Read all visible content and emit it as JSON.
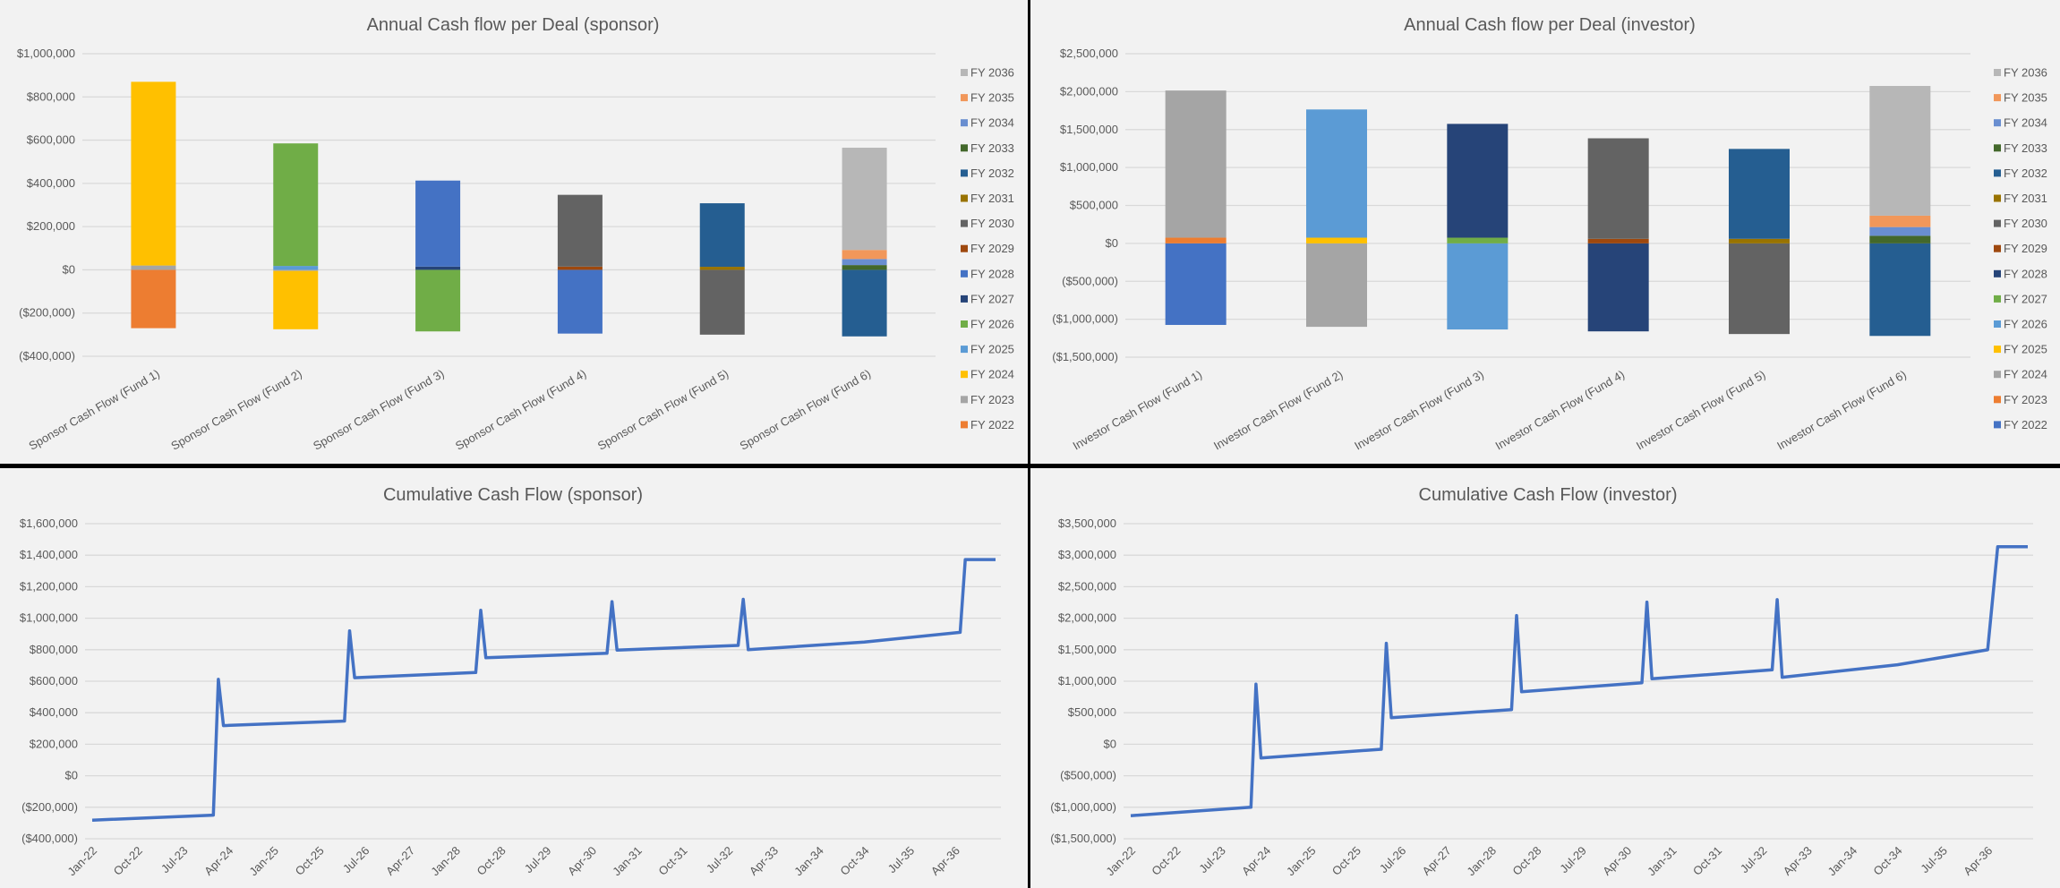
{
  "chart_data": [
    {
      "type": "bar",
      "stacked": true,
      "title": "Annual Cash flow per Deal (sponsor)",
      "categories": [
        "Sponsor Cash Flow (Fund 1)",
        "Sponsor Cash Flow (Fund 2)",
        "Sponsor Cash Flow (Fund 3)",
        "Sponsor Cash Flow (Fund 4)",
        "Sponsor Cash Flow (Fund 5)",
        "Sponsor Cash Flow (Fund 6)"
      ],
      "ylim": [
        -400000,
        1000000
      ],
      "yticks": [
        -400000,
        -200000,
        0,
        200000,
        400000,
        600000,
        800000,
        1000000
      ],
      "ytick_labels": [
        "($400,000)",
        "($200,000)",
        "$0",
        "$200,000",
        "$400,000",
        "$600,000",
        "$800,000",
        "$1,000,000"
      ],
      "grid": true,
      "legend": "right",
      "series": [
        {
          "name": "FY 2022",
          "color": "#ED7D31",
          "values": [
            -270000,
            0,
            0,
            0,
            0,
            0
          ]
        },
        {
          "name": "FY 2023",
          "color": "#A5A5A5",
          "values": [
            20000,
            -5000,
            0,
            0,
            0,
            0
          ]
        },
        {
          "name": "FY 2024",
          "color": "#FFC000",
          "values": [
            850000,
            -270000,
            0,
            0,
            0,
            0
          ]
        },
        {
          "name": "FY 2025",
          "color": "#5B9BD5",
          "values": [
            0,
            18000,
            0,
            0,
            0,
            0
          ]
        },
        {
          "name": "FY 2026",
          "color": "#70AD47",
          "values": [
            0,
            567000,
            -285000,
            0,
            0,
            0
          ]
        },
        {
          "name": "FY 2027",
          "color": "#264478",
          "values": [
            0,
            0,
            15000,
            0,
            0,
            0
          ]
        },
        {
          "name": "FY 2028",
          "color": "#4472C4",
          "values": [
            0,
            0,
            398000,
            -295000,
            0,
            0
          ]
        },
        {
          "name": "FY 2029",
          "color": "#9E480E",
          "values": [
            0,
            0,
            0,
            15000,
            0,
            0
          ]
        },
        {
          "name": "FY 2030",
          "color": "#636363",
          "values": [
            0,
            0,
            0,
            332000,
            -300000,
            0
          ]
        },
        {
          "name": "FY 2031",
          "color": "#997300",
          "values": [
            0,
            0,
            0,
            0,
            14000,
            0
          ]
        },
        {
          "name": "FY 2032",
          "color": "#255E91",
          "values": [
            0,
            0,
            0,
            0,
            294000,
            -308000
          ]
        },
        {
          "name": "FY 2033",
          "color": "#43682B",
          "values": [
            0,
            0,
            0,
            0,
            0,
            22000
          ]
        },
        {
          "name": "FY 2034",
          "color": "#698ED0",
          "values": [
            0,
            0,
            0,
            0,
            0,
            28000
          ]
        },
        {
          "name": "FY 2035",
          "color": "#F1975A",
          "values": [
            0,
            0,
            0,
            0,
            0,
            42000
          ]
        },
        {
          "name": "FY 2036",
          "color": "#B7B7B7",
          "values": [
            0,
            0,
            0,
            0,
            0,
            473000
          ]
        }
      ]
    },
    {
      "type": "bar",
      "stacked": true,
      "title": "Annual Cash flow per Deal (investor)",
      "categories": [
        "Investor Cash Flow (Fund 1)",
        "Investor Cash Flow (Fund 2)",
        "Investor Cash Flow (Fund 3)",
        "Investor Cash Flow (Fund 4)",
        "Investor Cash Flow (Fund 5)",
        "Investor Cash Flow (Fund 6)"
      ],
      "ylim": [
        -1500000,
        2500000
      ],
      "yticks": [
        -1500000,
        -1000000,
        -500000,
        0,
        500000,
        1000000,
        1500000,
        2000000,
        2500000
      ],
      "ytick_labels": [
        "($1,500,000)",
        "($1,000,000)",
        "($500,000)",
        "$0",
        "$500,000",
        "$1,000,000",
        "$1,500,000",
        "$2,000,000",
        "$2,500,000"
      ],
      "grid": true,
      "legend": "right",
      "series": [
        {
          "name": "FY 2022",
          "color": "#4472C4",
          "values": [
            -1075000,
            0,
            0,
            0,
            0,
            0
          ]
        },
        {
          "name": "FY 2023",
          "color": "#ED7D31",
          "values": [
            75000,
            0,
            0,
            0,
            0,
            0
          ]
        },
        {
          "name": "FY 2024",
          "color": "#A5A5A5",
          "values": [
            1940000,
            -1100000,
            0,
            0,
            0,
            0
          ]
        },
        {
          "name": "FY 2025",
          "color": "#FFC000",
          "values": [
            0,
            75000,
            0,
            0,
            0,
            0
          ]
        },
        {
          "name": "FY 2026",
          "color": "#5B9BD5",
          "values": [
            0,
            1690000,
            -1135000,
            0,
            0,
            0
          ]
        },
        {
          "name": "FY 2027",
          "color": "#70AD47",
          "values": [
            0,
            0,
            75000,
            0,
            0,
            0
          ]
        },
        {
          "name": "FY 2028",
          "color": "#264478",
          "values": [
            0,
            0,
            1500000,
            -1160000,
            0,
            0
          ]
        },
        {
          "name": "FY 2029",
          "color": "#9E480E",
          "values": [
            0,
            0,
            0,
            60000,
            0,
            0
          ]
        },
        {
          "name": "FY 2030",
          "color": "#636363",
          "values": [
            0,
            0,
            0,
            1325000,
            -1195000,
            0
          ]
        },
        {
          "name": "FY 2031",
          "color": "#997300",
          "values": [
            0,
            0,
            0,
            0,
            60000,
            0
          ]
        },
        {
          "name": "FY 2032",
          "color": "#255E91",
          "values": [
            0,
            0,
            0,
            0,
            1185000,
            -1220000
          ]
        },
        {
          "name": "FY 2033",
          "color": "#43682B",
          "values": [
            0,
            0,
            0,
            0,
            0,
            100000
          ]
        },
        {
          "name": "FY 2034",
          "color": "#698ED0",
          "values": [
            0,
            0,
            0,
            0,
            0,
            115000
          ]
        },
        {
          "name": "FY 2035",
          "color": "#F1975A",
          "values": [
            0,
            0,
            0,
            0,
            0,
            150000
          ]
        },
        {
          "name": "FY 2036",
          "color": "#B7B7B7",
          "values": [
            0,
            0,
            0,
            0,
            0,
            1710000
          ]
        }
      ]
    },
    {
      "type": "line",
      "title": "Cumulative Cash Flow (sponsor)",
      "xlim": [
        "2022-01",
        "2036-12"
      ],
      "xtick_labels": [
        "Jan-22",
        "Oct-22",
        "Jul-23",
        "Apr-24",
        "Jan-25",
        "Oct-25",
        "Jul-26",
        "Apr-27",
        "Jan-28",
        "Oct-28",
        "Jul-29",
        "Apr-30",
        "Jan-31",
        "Oct-31",
        "Jul-32",
        "Apr-33",
        "Jan-34",
        "Oct-34",
        "Jul-35",
        "Apr-36"
      ],
      "ylim": [
        -400000,
        1600000
      ],
      "yticks": [
        -400000,
        -200000,
        0,
        200000,
        400000,
        600000,
        800000,
        1000000,
        1200000,
        1400000,
        1600000
      ],
      "ytick_labels": [
        "($400,000)",
        "($200,000)",
        "$0",
        "$200,000",
        "$400,000",
        "$600,000",
        "$800,000",
        "$1,000,000",
        "$1,200,000",
        "$1,400,000",
        "$1,600,000"
      ],
      "grid": true,
      "color": "#4472C4",
      "points": [
        [
          "2022-01",
          -282000
        ],
        [
          "2024-01",
          -250000
        ],
        [
          "2024-02",
          612000
        ],
        [
          "2024-03",
          318000
        ],
        [
          "2026-03",
          347000
        ],
        [
          "2026-04",
          920000
        ],
        [
          "2026-05",
          622000
        ],
        [
          "2028-05",
          655000
        ],
        [
          "2028-06",
          1050000
        ],
        [
          "2028-07",
          749000
        ],
        [
          "2030-07",
          777000
        ],
        [
          "2030-08",
          1105000
        ],
        [
          "2030-09",
          798000
        ],
        [
          "2032-09",
          827000
        ],
        [
          "2032-10",
          1120000
        ],
        [
          "2032-11",
          800000
        ],
        [
          "2034-10",
          849000
        ],
        [
          "2036-05",
          910000
        ],
        [
          "2036-06",
          1372000
        ],
        [
          "2036-12",
          1372000
        ]
      ]
    },
    {
      "type": "line",
      "title": "Cumulative Cash Flow (investor)",
      "xlim": [
        "2022-01",
        "2036-12"
      ],
      "xtick_labels": [
        "Jan-22",
        "Oct-22",
        "Jul-23",
        "Apr-24",
        "Jan-25",
        "Oct-25",
        "Jul-26",
        "Apr-27",
        "Jan-28",
        "Oct-28",
        "Jul-29",
        "Apr-30",
        "Jan-31",
        "Oct-31",
        "Jul-32",
        "Apr-33",
        "Jan-34",
        "Oct-34",
        "Jul-35",
        "Apr-36"
      ],
      "ylim": [
        -1500000,
        3500000
      ],
      "yticks": [
        -1500000,
        -1000000,
        -500000,
        0,
        500000,
        1000000,
        1500000,
        2000000,
        2500000,
        3000000,
        3500000
      ],
      "ytick_labels": [
        "($1,500,000)",
        "($1,000,000)",
        "($500,000)",
        "$0",
        "$500,000",
        "$1,000,000",
        "$1,500,000",
        "$2,000,000",
        "$2,500,000",
        "$3,000,000",
        "$3,500,000"
      ],
      "grid": true,
      "color": "#4472C4",
      "points": [
        [
          "2022-01",
          -1133000
        ],
        [
          "2024-01",
          -1000000
        ],
        [
          "2024-02",
          953000
        ],
        [
          "2024-03",
          -218000
        ],
        [
          "2026-03",
          -80000
        ],
        [
          "2026-04",
          1602000
        ],
        [
          "2026-05",
          422000
        ],
        [
          "2028-05",
          550000
        ],
        [
          "2028-06",
          2043000
        ],
        [
          "2028-07",
          834000
        ],
        [
          "2030-07",
          976000
        ],
        [
          "2030-08",
          2256000
        ],
        [
          "2030-09",
          1038000
        ],
        [
          "2032-09",
          1180000
        ],
        [
          "2032-10",
          2294000
        ],
        [
          "2032-11",
          1062000
        ],
        [
          "2034-10",
          1261000
        ],
        [
          "2036-04",
          1498000
        ],
        [
          "2036-06",
          3133000
        ],
        [
          "2036-12",
          3133000
        ]
      ]
    }
  ]
}
